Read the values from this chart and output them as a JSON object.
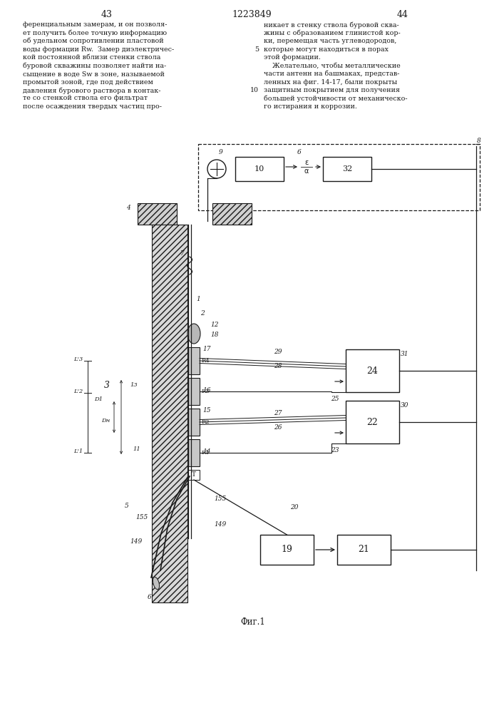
{
  "page_number_left": "43",
  "page_number_center": "1223849",
  "page_number_right": "44",
  "fig_caption": "Фиг.1",
  "bg_color": "#ffffff",
  "line_color": "#1a1a1a",
  "text_color": "#1a1a1a"
}
